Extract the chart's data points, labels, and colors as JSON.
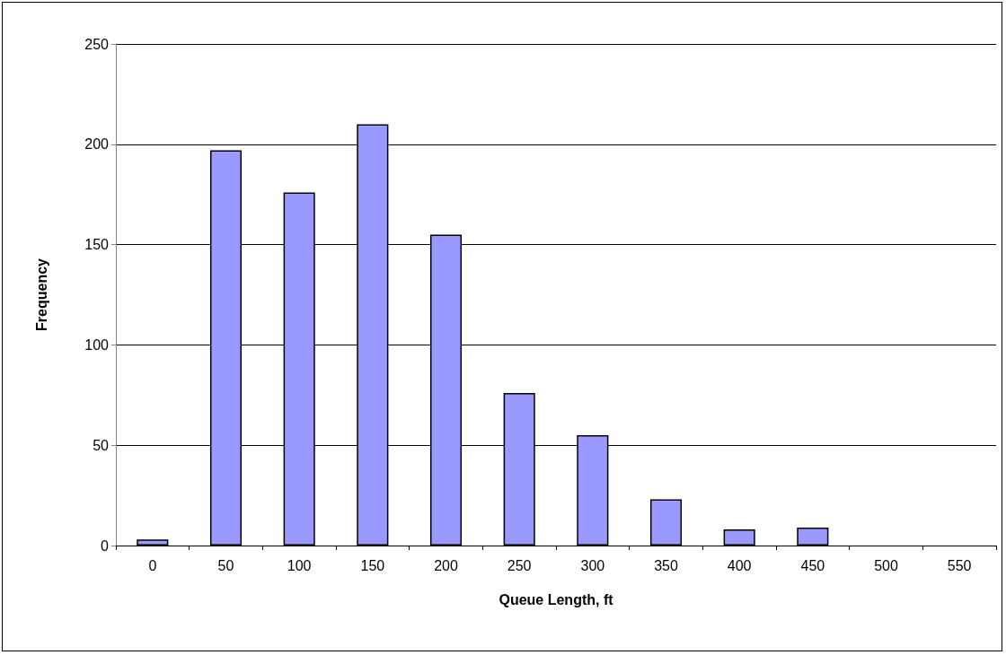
{
  "chart_data": {
    "type": "bar",
    "xlabel": "Queue Length, ft",
    "ylabel": "Frequency",
    "categories": [
      "0",
      "50",
      "100",
      "150",
      "200",
      "250",
      "300",
      "350",
      "400",
      "450",
      "500",
      "550"
    ],
    "values": [
      3,
      197,
      176,
      210,
      155,
      76,
      55,
      23,
      8,
      9,
      0,
      0
    ],
    "color": "#9999ff",
    "ylim": [
      0,
      250
    ],
    "yticks": [
      0,
      50,
      100,
      150,
      200,
      250
    ],
    "grid": "y"
  }
}
